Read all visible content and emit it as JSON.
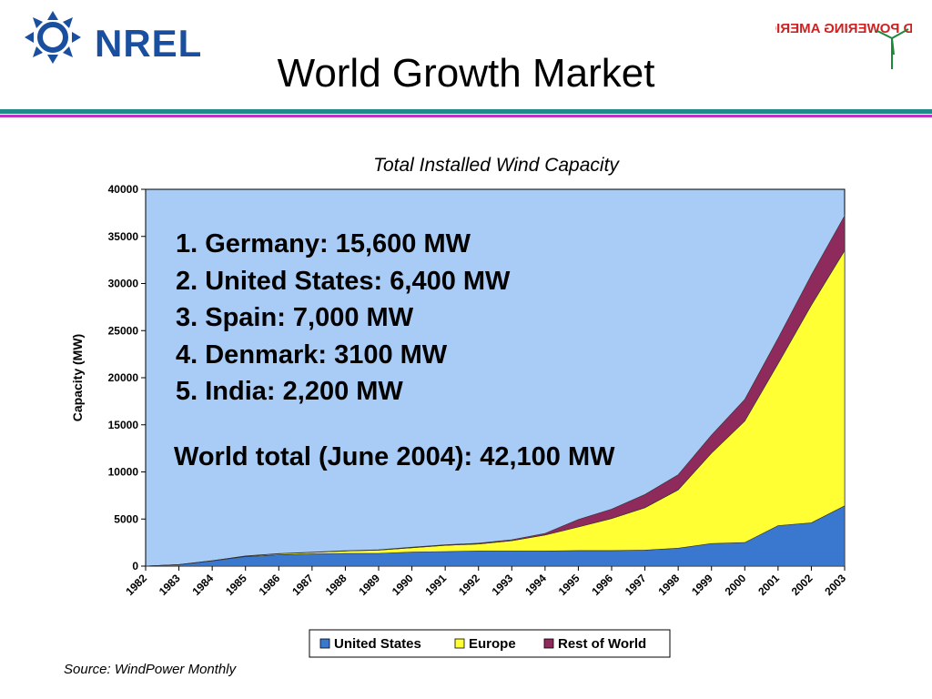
{
  "header": {
    "logo_text": "NREL",
    "partner_logo_text": "WIND POWERING AMERICA",
    "title": "World Growth Market"
  },
  "colors": {
    "rule_teal": "#1f8a8a",
    "rule_magenta": "#c030c0",
    "plot_bg": "#a9ccf7",
    "united_states": "#3a78d0",
    "europe": "#ffff33",
    "rest_of_world": "#8e2a5c"
  },
  "rankings": [
    "1. Germany:  15,600 MW",
    "2. United States:  6,400 MW",
    "3. Spain:  7,000 MW",
    "4. Denmark:  3100 MW",
    "5. India:  2,200 MW"
  ],
  "world_total": "World total (June 2004): 42,100 MW",
  "source": "Source: WindPower Monthly",
  "chart_data": {
    "type": "area",
    "stacked": true,
    "title": "Total Installed Wind Capacity",
    "xlabel": "",
    "ylabel": "Capacity (MW)",
    "ylim": [
      0,
      40000
    ],
    "yticks": [
      0,
      5000,
      10000,
      15000,
      20000,
      25000,
      30000,
      35000,
      40000
    ],
    "categories": [
      "1982",
      "1983",
      "1984",
      "1985",
      "1986",
      "1987",
      "1988",
      "1989",
      "1990",
      "1991",
      "1992",
      "1993",
      "1994",
      "1995",
      "1996",
      "1997",
      "1998",
      "1999",
      "2000",
      "2001",
      "2002",
      "2003"
    ],
    "series": [
      {
        "name": "United States",
        "color": "#3a78d0",
        "values": [
          10,
          150,
          550,
          1000,
          1200,
          1300,
          1350,
          1350,
          1500,
          1550,
          1600,
          1600,
          1600,
          1650,
          1650,
          1700,
          1900,
          2400,
          2500,
          4300,
          4600,
          6400
        ]
      },
      {
        "name": "Europe",
        "color": "#ffff33",
        "values": [
          0,
          10,
          30,
          60,
          100,
          150,
          250,
          350,
          450,
          650,
          750,
          1100,
          1700,
          2500,
          3400,
          4500,
          6200,
          9600,
          12900,
          17200,
          23100,
          27100
        ]
      },
      {
        "name": "Rest of World",
        "color": "#8e2a5c",
        "values": [
          0,
          0,
          0,
          20,
          30,
          30,
          30,
          40,
          60,
          70,
          80,
          100,
          180,
          800,
          1000,
          1400,
          1600,
          1900,
          2300,
          2700,
          3200,
          3700
        ]
      }
    ],
    "grid": false,
    "legend_position": "bottom-center"
  }
}
